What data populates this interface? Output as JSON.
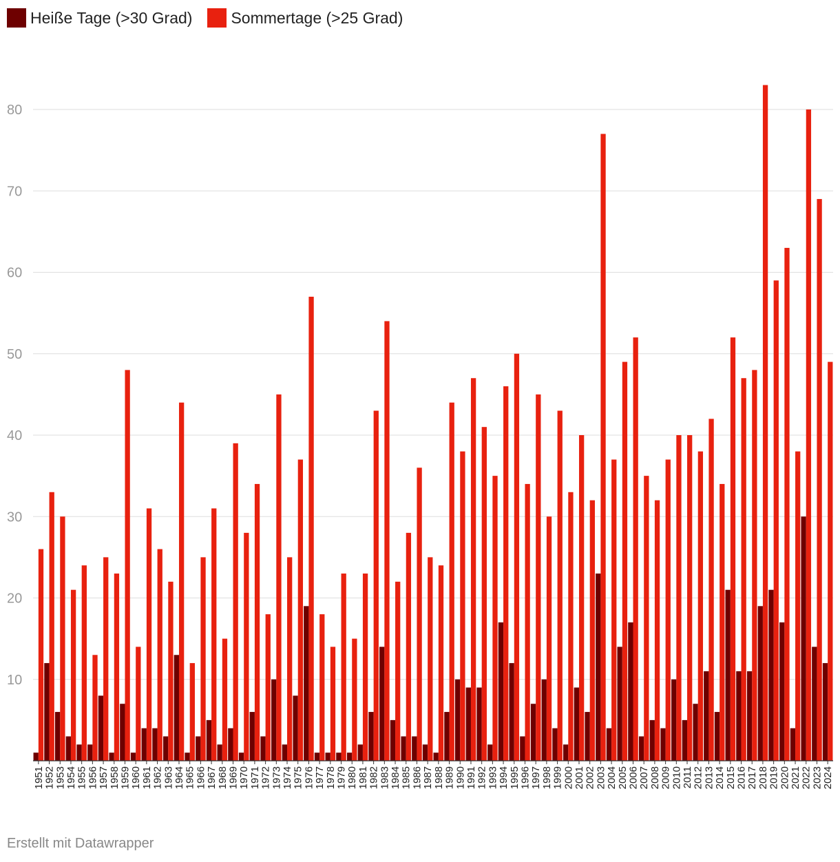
{
  "legend": [
    {
      "label": "Heiße Tage (>30 Grad)",
      "color": "#6e0000"
    },
    {
      "label": "Sommertage (>25 Grad)",
      "color": "#e8210f"
    }
  ],
  "footer": "Erstellt mit Datawrapper",
  "chart_data": {
    "type": "bar",
    "title": "",
    "xlabel": "",
    "ylabel": "",
    "ylim": [
      0,
      85
    ],
    "yticks": [
      10,
      20,
      30,
      40,
      50,
      60,
      70,
      80
    ],
    "grid": true,
    "legend_position": "top-left",
    "categories": [
      "1951",
      "1952",
      "1953",
      "1954",
      "1955",
      "1956",
      "1957",
      "1958",
      "1959",
      "1960",
      "1961",
      "1962",
      "1963",
      "1964",
      "1965",
      "1966",
      "1967",
      "1968",
      "1969",
      "1970",
      "1971",
      "1972",
      "1973",
      "1974",
      "1975",
      "1976",
      "1977",
      "1978",
      "1979",
      "1980",
      "1981",
      "1982",
      "1983",
      "1984",
      "1985",
      "1986",
      "1987",
      "1988",
      "1989",
      "1990",
      "1991",
      "1992",
      "1993",
      "1994",
      "1995",
      "1996",
      "1997",
      "1998",
      "1999",
      "2000",
      "2001",
      "2002",
      "2003",
      "2004",
      "2005",
      "2006",
      "2007",
      "2008",
      "2009",
      "2010",
      "2011",
      "2012",
      "2013",
      "2014",
      "2015",
      "2016",
      "2017",
      "2018",
      "2019",
      "2020",
      "2021",
      "2022",
      "2023",
      "2024"
    ],
    "series": [
      {
        "name": "Heiße Tage (>30 Grad)",
        "color": "#6e0000",
        "values": [
          1,
          12,
          6,
          3,
          2,
          2,
          8,
          1,
          7,
          1,
          4,
          4,
          3,
          13,
          1,
          3,
          5,
          2,
          4,
          1,
          6,
          3,
          10,
          2,
          8,
          19,
          1,
          1,
          1,
          1,
          2,
          6,
          14,
          5,
          3,
          3,
          2,
          1,
          6,
          10,
          9,
          9,
          2,
          17,
          12,
          3,
          7,
          10,
          4,
          2,
          9,
          6,
          23,
          4,
          14,
          17,
          3,
          5,
          4,
          10,
          5,
          7,
          11,
          6,
          21,
          11,
          11,
          19,
          21,
          17,
          4,
          30,
          14,
          12
        ]
      },
      {
        "name": "Sommertage (>25 Grad)",
        "color": "#e8210f",
        "values": [
          26,
          33,
          30,
          21,
          24,
          13,
          25,
          23,
          48,
          14,
          31,
          26,
          22,
          44,
          12,
          25,
          31,
          15,
          39,
          28,
          34,
          18,
          45,
          25,
          37,
          57,
          18,
          14,
          23,
          15,
          23,
          43,
          54,
          22,
          28,
          36,
          25,
          24,
          44,
          38,
          47,
          41,
          35,
          46,
          50,
          34,
          45,
          30,
          43,
          33,
          40,
          32,
          77,
          37,
          49,
          52,
          35,
          32,
          37,
          40,
          40,
          38,
          42,
          34,
          52,
          47,
          48,
          83,
          59,
          63,
          38,
          80,
          69,
          49
        ]
      }
    ]
  }
}
